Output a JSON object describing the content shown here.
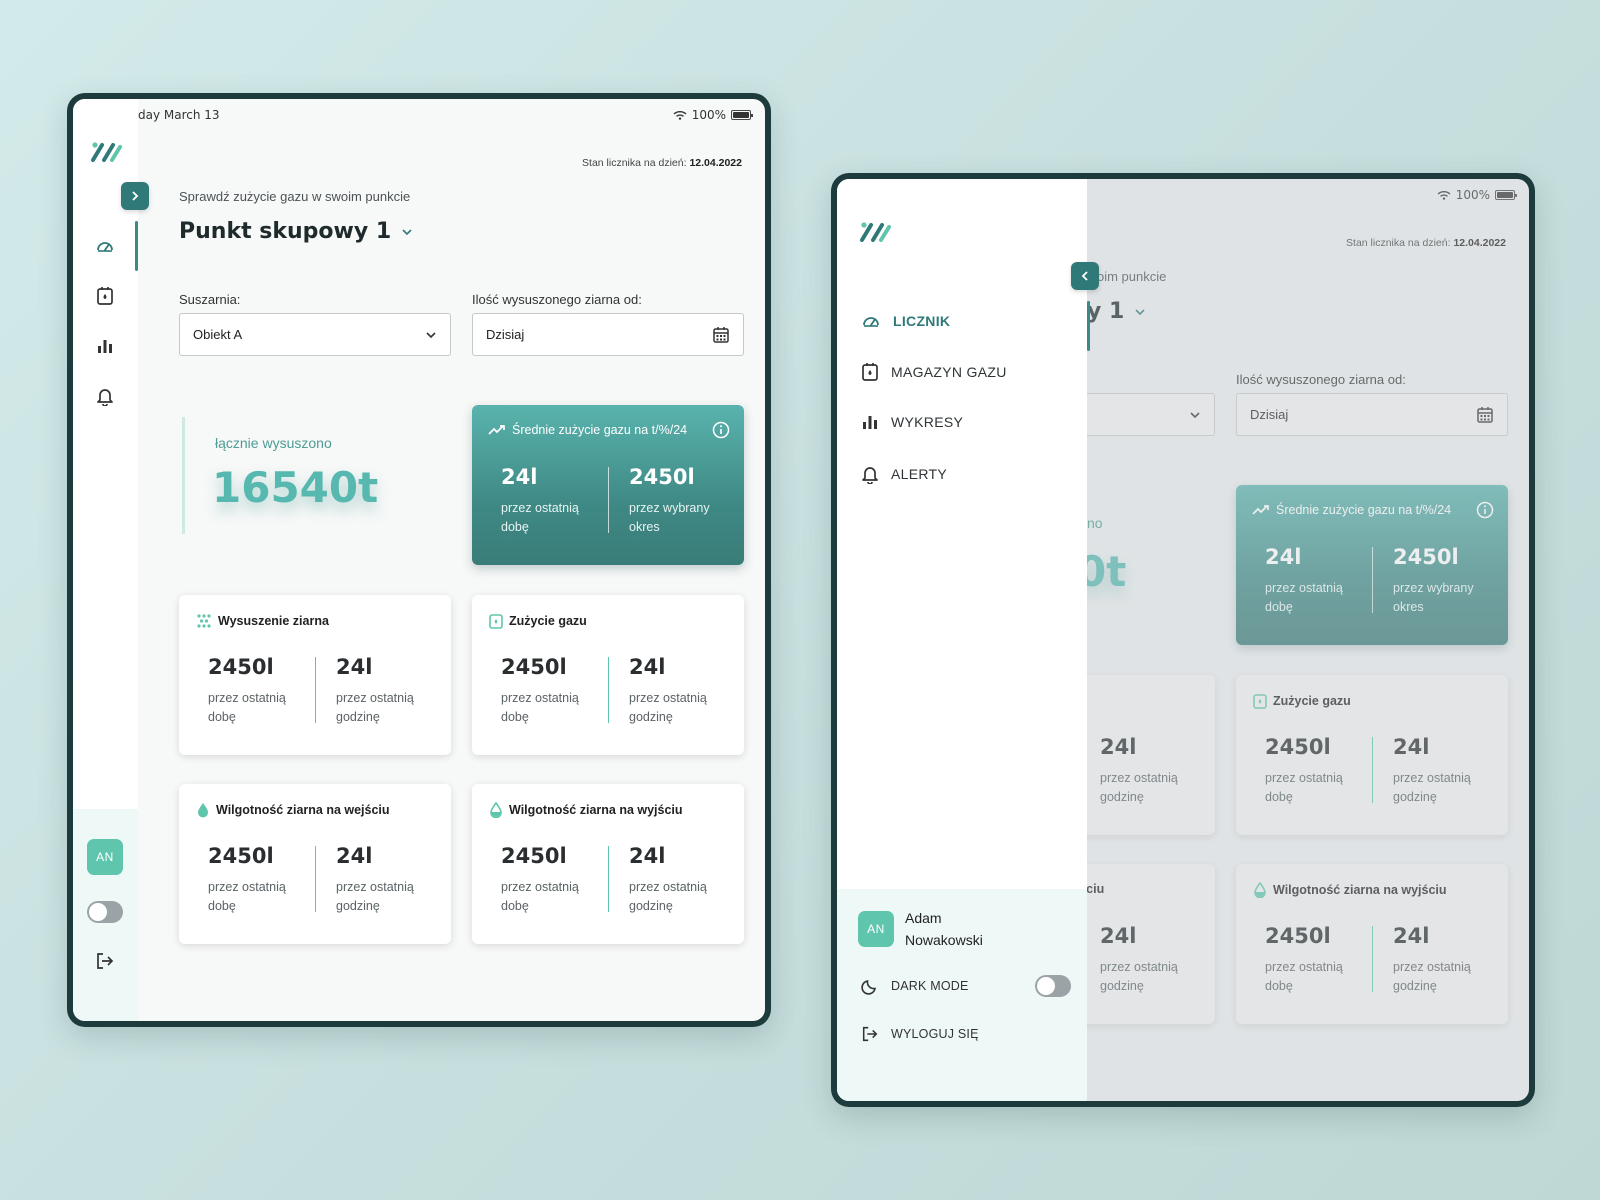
{
  "status": {
    "date": "day March 13",
    "battery": "100%"
  },
  "header": {
    "meter_label": "Stan licznika na dzień:",
    "meter_date": "12.04.2022",
    "subtitle": "Sprawdź zużycie gazu w swoim punkcie",
    "title": "Punkt skupowy 1",
    "subtitle_partial": "oim punkcie",
    "title_partial": "y 1"
  },
  "filters": {
    "dryer_label": "Suszarnia:",
    "dryer_value": "Obiekt A",
    "grain_label": "Ilość wysuszonego ziarna od:",
    "grain_value": "Dzisiaj"
  },
  "total": {
    "label": "łącznie wysuszono",
    "value": "16540t",
    "label_partial": "no",
    "value_partial": "0t"
  },
  "avg_card": {
    "title": "Średnie zużycie gazu na t/%/24",
    "left_value": "24l",
    "left_desc": "przez ostatnią dobę",
    "right_value": "2450l",
    "right_desc": "przez wybrany okres"
  },
  "cards": [
    {
      "title": "Wysuszenie ziarna",
      "left_value": "2450l",
      "left_desc": "przez ostatnią dobę",
      "right_value": "24l",
      "right_desc": "przez ostatnią godzinę"
    },
    {
      "title": "Zużycie gazu",
      "left_value": "2450l",
      "left_desc": "przez ostatnią dobę",
      "right_value": "24l",
      "right_desc": "przez ostatnią godzinę"
    },
    {
      "title": "Wilgotność ziarna na wejściu",
      "left_value": "2450l",
      "left_desc": "przez ostatnią dobę",
      "right_value": "24l",
      "right_desc": "przez ostatnią godzinę",
      "title_partial": "na wejściu"
    },
    {
      "title": "Wilgotność ziarna na wyjściu",
      "left_value": "2450l",
      "left_desc": "przez ostatnią dobę",
      "right_value": "24l",
      "right_desc": "przez ostatnią godzinę"
    }
  ],
  "sidebar": {
    "nav": [
      {
        "label": "LICZNIK",
        "icon": "gauge-icon"
      },
      {
        "label": "MAGAZYN GAZU",
        "icon": "gas-tank-icon"
      },
      {
        "label": "WYKRESY",
        "icon": "bar-chart-icon"
      },
      {
        "label": "ALERTY",
        "icon": "bell-icon"
      }
    ],
    "user": {
      "initials": "AN",
      "first_name": "Adam",
      "last_name": "Nowakowski"
    },
    "dark_mode_label": "DARK MODE",
    "logout_label": "WYLOGUJ SIĘ"
  },
  "colors": {
    "accent": "#2f7a78",
    "teal_light": "#57b8b0",
    "mint": "#5fc6ad",
    "frame": "#1d3a3c"
  }
}
